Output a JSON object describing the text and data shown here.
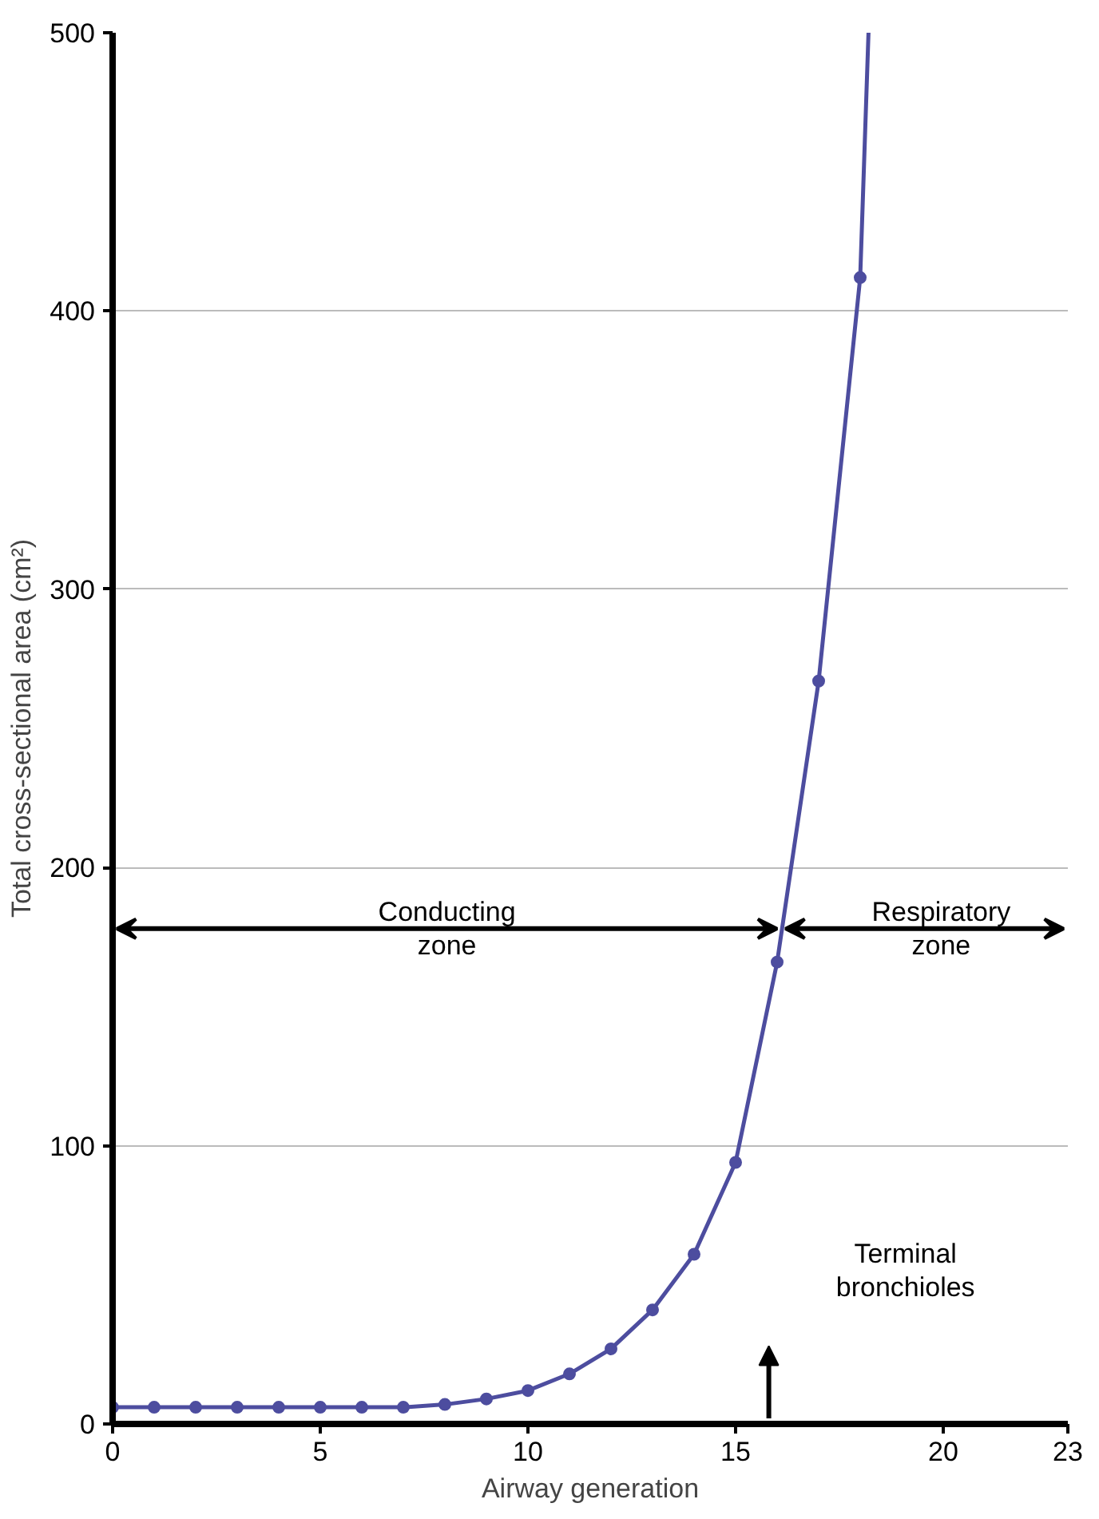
{
  "chart_data": {
    "type": "line",
    "xlabel": "Airway generation",
    "ylabel": "Total cross-sectional area (cm²)",
    "xlim": [
      0,
      23
    ],
    "ylim": [
      0,
      500
    ],
    "xticks": [
      0,
      5,
      10,
      15,
      20,
      23
    ],
    "yticks": [
      0,
      100,
      200,
      300,
      400,
      500
    ],
    "grid": "y",
    "series": [
      {
        "color": "#4d4d9f",
        "marker": "none",
        "x": [
          0,
          1,
          2,
          3,
          4,
          5,
          6,
          7,
          8,
          9,
          10,
          11,
          12,
          13,
          14,
          15,
          16,
          17,
          18,
          18.2
        ],
        "values": [
          6,
          6,
          6,
          6,
          6,
          6,
          6,
          6,
          7,
          9,
          12,
          18,
          27,
          41,
          61,
          94,
          166,
          267,
          412,
          500
        ]
      },
      {
        "type": "scatter",
        "color": "#4d4d9f",
        "marker": "circle",
        "x": [
          0,
          1,
          2,
          3,
          4,
          5,
          6,
          7,
          8,
          9,
          10,
          11,
          12,
          13,
          14,
          15,
          16,
          17,
          18
        ],
        "values": [
          6,
          6,
          6,
          6,
          6,
          6,
          6,
          6,
          7,
          9,
          12,
          18,
          27,
          41,
          61,
          94,
          166,
          267,
          412
        ]
      }
    ],
    "annotations": [
      "Conducting\nzone",
      "Respiratory\nzone",
      "Terminal\nbronchioles"
    ]
  }
}
